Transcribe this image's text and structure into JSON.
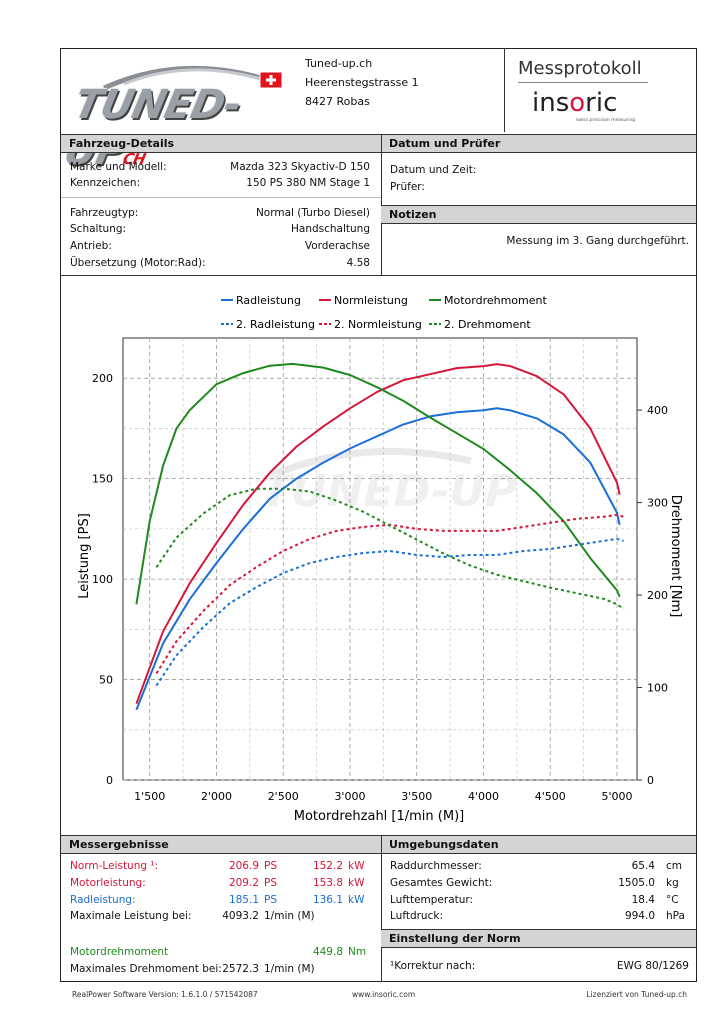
{
  "header": {
    "logo_text": "TUNED-UP",
    "logo_suffix": "CH",
    "company_name": "Tuned-up.ch",
    "street": "Heerenstegstrasse 1",
    "city": "8427 Robas",
    "protocol_title": "Messprotokoll",
    "brand_left": "ins",
    "brand_o": "o",
    "brand_right": "ric",
    "brand_tagline": "swiss precision measuring"
  },
  "vehicle": {
    "heading": "Fahrzeug-Details",
    "rows": [
      {
        "label": "Marke und Modell:",
        "value": "Mazda 323 Skyactiv-D 150"
      },
      {
        "label": "Kennzeichen:",
        "value": "150 PS 380 NM Stage 1"
      },
      {
        "label": "Fahrzeugtyp:",
        "value": "Normal (Turbo Diesel)"
      },
      {
        "label": "Schaltung:",
        "value": "Handschaltung"
      },
      {
        "label": "Antrieb:",
        "value": "Vorderachse"
      },
      {
        "label": "Übersetzung (Motor:Rad):",
        "value": "4.58"
      }
    ]
  },
  "date_tester": {
    "heading": "Datum und Prüfer",
    "date_label": "Datum und Zeit:",
    "tester_label": "Prüfer:"
  },
  "notes": {
    "heading": "Notizen",
    "text": "Messung im 3. Gang durchgeführt."
  },
  "chart_data": {
    "type": "line",
    "xlabel": "Motordrehzahl [1/min (M)]",
    "ylabel": "Leistung [PS]",
    "y2label": "Drehmoment [Nm]",
    "xlim": [
      1300,
      5150
    ],
    "ylim": [
      0,
      220
    ],
    "y2lim": [
      0,
      478
    ],
    "x_ticks": [
      1500,
      2000,
      2500,
      3000,
      3500,
      4000,
      4500,
      5000
    ],
    "x_tick_labels": [
      "1'500",
      "2'000",
      "2'500",
      "3'000",
      "3'500",
      "4'000",
      "4'500",
      "5'000"
    ],
    "y_ticks": [
      0,
      50,
      100,
      150,
      200
    ],
    "y2_ticks": [
      0,
      100,
      200,
      300,
      400
    ],
    "grid": true,
    "legend_position": "top",
    "series": [
      {
        "name": "Radleistung",
        "axis": "left",
        "color": "#1a6fd4",
        "dash": false,
        "x": [
          1400,
          1600,
          1800,
          2000,
          2200,
          2400,
          2600,
          2800,
          3000,
          3200,
          3400,
          3600,
          3800,
          4000,
          4100,
          4200,
          4400,
          4600,
          4800,
          5000,
          5020
        ],
        "y": [
          35,
          68,
          90,
          108,
          125,
          140,
          150,
          158,
          165,
          171,
          177,
          181,
          183,
          184,
          185,
          184,
          180,
          172,
          158,
          133,
          127
        ]
      },
      {
        "name": "Normleistung",
        "axis": "left",
        "color": "#d4173a",
        "dash": false,
        "x": [
          1400,
          1600,
          1800,
          2000,
          2200,
          2400,
          2600,
          2800,
          3000,
          3200,
          3400,
          3600,
          3800,
          4000,
          4100,
          4200,
          4400,
          4600,
          4800,
          5000,
          5020
        ],
        "y": [
          38,
          74,
          98,
          118,
          137,
          153,
          166,
          176,
          185,
          193,
          199,
          202,
          205,
          206,
          207,
          206,
          201,
          192,
          175,
          148,
          142
        ]
      },
      {
        "name": "Motordrehmoment",
        "axis": "right",
        "color": "#1e8a1e",
        "dash": false,
        "x": [
          1400,
          1500,
          1600,
          1700,
          1800,
          2000,
          2200,
          2400,
          2572,
          2800,
          3000,
          3200,
          3400,
          3600,
          3800,
          4000,
          4200,
          4400,
          4600,
          4800,
          5000,
          5020
        ],
        "y": [
          190,
          280,
          340,
          380,
          400,
          428,
          440,
          448,
          450,
          446,
          438,
          425,
          410,
          392,
          375,
          358,
          335,
          310,
          280,
          240,
          205,
          198
        ]
      },
      {
        "name": "2. Radleistung",
        "axis": "left",
        "color": "#1a6fd4",
        "dash": true,
        "x": [
          1550,
          1700,
          1900,
          2100,
          2300,
          2500,
          2700,
          2900,
          3100,
          3300,
          3500,
          3700,
          3900,
          4100,
          4300,
          4500,
          4700,
          4900,
          5000,
          5050
        ],
        "y": [
          47,
          62,
          76,
          88,
          96,
          103,
          108,
          111,
          113,
          114,
          112,
          111,
          112,
          112,
          114,
          115,
          117,
          119,
          120,
          119
        ]
      },
      {
        "name": "2. Normleistung",
        "axis": "left",
        "color": "#d4173a",
        "dash": true,
        "x": [
          1550,
          1700,
          1900,
          2100,
          2300,
          2500,
          2700,
          2900,
          3100,
          3300,
          3500,
          3700,
          3900,
          4100,
          4300,
          4500,
          4700,
          4900,
          5000,
          5050
        ],
        "y": [
          53,
          69,
          84,
          97,
          106,
          114,
          120,
          124,
          126,
          127,
          125,
          124,
          124,
          124,
          126,
          128,
          130,
          131,
          132,
          131
        ]
      },
      {
        "name": "2. Drehmoment",
        "axis": "right",
        "color": "#1e8a1e",
        "dash": true,
        "x": [
          1550,
          1700,
          1900,
          2100,
          2300,
          2500,
          2700,
          2900,
          3100,
          3300,
          3500,
          3700,
          3900,
          4100,
          4300,
          4500,
          4700,
          4900,
          5000,
          5050
        ],
        "y": [
          230,
          262,
          288,
          308,
          315,
          315,
          312,
          302,
          290,
          275,
          260,
          245,
          232,
          222,
          215,
          208,
          202,
          196,
          190,
          185
        ]
      }
    ]
  },
  "results": {
    "heading": "Messergebnisse",
    "rows": [
      {
        "label": "Norm-Leistung ¹:",
        "ps": "206.9",
        "ps_unit": "PS",
        "kw": "152.2",
        "kw_unit": "kW",
        "color": "red"
      },
      {
        "label": "Motorleistung:",
        "ps": "209.2",
        "ps_unit": "PS",
        "kw": "153.8",
        "kw_unit": "kW",
        "color": "red"
      },
      {
        "label": "Radleistung:",
        "ps": "185.1",
        "ps_unit": "PS",
        "kw": "136.1",
        "kw_unit": "kW",
        "color": "blue"
      }
    ],
    "max_power_label": "Maximale Leistung bei:",
    "max_power_rpm": "4093.2",
    "rpm_unit": "1/min (M)",
    "torque_label": "Motordrehmoment",
    "torque_value": "449.8",
    "torque_unit": "Nm",
    "max_torque_label": "Maximales Drehmoment bei:",
    "max_torque_rpm": "2572.3",
    "max_torque_unit": "1/min (M)"
  },
  "environment": {
    "heading": "Umgebungsdaten",
    "rows": [
      {
        "label": "Raddurchmesser:",
        "value": "65.4",
        "unit": "cm"
      },
      {
        "label": "Gesamtes Gewicht:",
        "value": "1505.0",
        "unit": "kg"
      },
      {
        "label": "Lufttemperatur:",
        "value": "18.4",
        "unit": "°C"
      },
      {
        "label": "Luftdruck:",
        "value": "994.0",
        "unit": "hPa"
      }
    ]
  },
  "norm": {
    "heading": "Einstellung der Norm",
    "label": "¹Korrektur nach:",
    "value": "EWG 80/1269"
  },
  "footer": {
    "software": "RealPower Software Version: 1.6.1.0 / 571542087",
    "website": "www.insoric.com",
    "license": "Lizenziert von Tuned-up.ch"
  }
}
